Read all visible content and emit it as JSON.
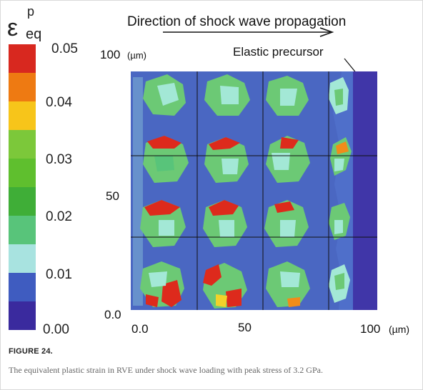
{
  "figure": {
    "legend_symbol": "ε",
    "legend_superscript": "p",
    "legend_subscript": "eq",
    "legend_ticks": [
      "0.05",
      "0.04",
      "0.03",
      "0.02",
      "0.01",
      "0.00"
    ],
    "legend_colors": [
      "#3a2a9e",
      "#3f5cc0",
      "#a8e3e0",
      "#58c47a",
      "#3fae37",
      "#5fbf2e",
      "#7cc83a",
      "#f7c51a",
      "#ee7a12",
      "#d8281f"
    ],
    "title": "Direction of shock wave propagation",
    "annotation": "Elastic precursor",
    "y_ticks": [
      "100",
      "50",
      "0.0"
    ],
    "y_unit": "(µm)",
    "x_ticks": [
      "0.0",
      "50",
      "100"
    ],
    "x_unit": "(µm)",
    "colors": {
      "matrix": "#4a67c2",
      "precursor": "#4036a8",
      "grain_green": "#6cc975",
      "grain_light": "#a3e8d6",
      "hot_red": "#dd2a1c",
      "hot_orange": "#f08c1a",
      "hot_yellow": "#f2d22a"
    }
  },
  "caption": {
    "label": "FIGURE 24.",
    "text": "The equivalent plastic strain in RVE under shock wave loading with peak stress of 3.2 GPa."
  }
}
